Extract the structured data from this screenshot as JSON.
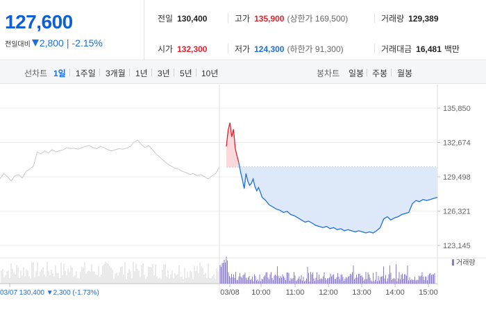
{
  "header": {
    "price": "127,600",
    "change_label": "전일대비",
    "change_value": "2,800",
    "change_percent": "-2.15%",
    "stats": {
      "prev_close_label": "전일",
      "prev_close": "130,400",
      "high_label": "고가",
      "high": "135,900",
      "upper_limit": "(상한가 169,500)",
      "volume_label": "거래량",
      "volume": "129,389",
      "open_label": "시가",
      "open": "132,300",
      "low_label": "저가",
      "low": "124,300",
      "lower_limit": "(하한가 91,300)",
      "amount_label": "거래대금",
      "amount": "16,481",
      "amount_unit": "백만"
    }
  },
  "periods": {
    "line_label": "선차트",
    "line_items": [
      "1일",
      "1주일",
      "3개월",
      "1년",
      "3년",
      "5년",
      "10년"
    ],
    "active": "1일",
    "candle_label": "봉차트",
    "candle_items": [
      "일봉",
      "주봉",
      "월봉"
    ]
  },
  "colors": {
    "up": "#e0202c",
    "down": "#1b6ee0",
    "volume": "#8a78c8",
    "fill": "#dde9f8"
  },
  "chart_data": {
    "type": "line",
    "y_ticks": [
      "135,850",
      "132,674",
      "129,498",
      "126,321",
      "123,145"
    ],
    "y_tick_values": [
      135850,
      132674,
      129498,
      126321,
      123145
    ],
    "ylim": [
      123145,
      135850
    ],
    "x_labels": [
      "03/07",
      "03/08",
      "10:00",
      "11:00",
      "12:00",
      "13:00",
      "14:00",
      "15:00"
    ],
    "prev_close": 130400,
    "prev_day_series": [
      [
        0,
        129300
      ],
      [
        2,
        129800
      ],
      [
        4,
        129500
      ],
      [
        6,
        129100
      ],
      [
        8,
        129600
      ],
      [
        10,
        129700
      ],
      [
        12,
        129400
      ],
      [
        14,
        130000
      ],
      [
        16,
        130200
      ],
      [
        18,
        130500
      ],
      [
        20,
        131800
      ],
      [
        22,
        131600
      ],
      [
        24,
        131900
      ],
      [
        26,
        131700
      ],
      [
        28,
        132000
      ],
      [
        30,
        131800
      ],
      [
        32,
        131900
      ],
      [
        34,
        132000
      ],
      [
        36,
        132200
      ],
      [
        38,
        132100
      ],
      [
        40,
        132150
      ],
      [
        42,
        132050
      ],
      [
        44,
        132200
      ],
      [
        46,
        132300
      ],
      [
        48,
        132400
      ],
      [
        50,
        132200
      ],
      [
        52,
        132100
      ],
      [
        54,
        132300
      ],
      [
        56,
        132200
      ],
      [
        58,
        132000
      ],
      [
        60,
        131900
      ],
      [
        62,
        132000
      ],
      [
        64,
        132100
      ],
      [
        66,
        132050
      ],
      [
        68,
        132150
      ],
      [
        70,
        132300
      ],
      [
        72,
        132700
      ],
      [
        74,
        132900
      ],
      [
        76,
        132500
      ],
      [
        78,
        132200
      ],
      [
        80,
        132400
      ],
      [
        82,
        132000
      ],
      [
        84,
        131600
      ],
      [
        86,
        131300
      ],
      [
        88,
        131000
      ],
      [
        90,
        130700
      ],
      [
        92,
        130500
      ],
      [
        94,
        130300
      ],
      [
        96,
        130200
      ],
      [
        98,
        130000
      ],
      [
        100,
        129900
      ],
      [
        102,
        129700
      ],
      [
        104,
        129800
      ],
      [
        106,
        129600
      ],
      [
        108,
        129700
      ],
      [
        110,
        129500
      ],
      [
        112,
        129300
      ],
      [
        114,
        129600
      ],
      [
        116,
        129800
      ],
      [
        118,
        130400
      ]
    ],
    "today_series": [
      [
        0,
        132300
      ],
      [
        1,
        133800
      ],
      [
        2,
        134500
      ],
      [
        3,
        133200
      ],
      [
        4,
        133900
      ],
      [
        5,
        132100
      ],
      [
        6,
        131400
      ],
      [
        7,
        130800
      ],
      [
        8,
        129900
      ],
      [
        9,
        129200
      ],
      [
        10,
        128400
      ],
      [
        11,
        129800
      ],
      [
        12,
        129100
      ],
      [
        13,
        128700
      ],
      [
        14,
        128900
      ],
      [
        15,
        129300
      ],
      [
        16,
        128600
      ],
      [
        17,
        128200
      ],
      [
        18,
        128500
      ],
      [
        19,
        128100
      ],
      [
        20,
        127600
      ],
      [
        22,
        127300
      ],
      [
        24,
        126900
      ],
      [
        26,
        126700
      ],
      [
        28,
        126500
      ],
      [
        30,
        126400
      ],
      [
        32,
        126200
      ],
      [
        34,
        126300
      ],
      [
        36,
        126000
      ],
      [
        38,
        125900
      ],
      [
        40,
        125700
      ],
      [
        42,
        125500
      ],
      [
        44,
        125300
      ],
      [
        46,
        125400
      ],
      [
        48,
        125200
      ],
      [
        50,
        125000
      ],
      [
        52,
        124900
      ],
      [
        54,
        124800
      ],
      [
        56,
        124900
      ],
      [
        58,
        124700
      ],
      [
        60,
        124800
      ],
      [
        62,
        124600
      ],
      [
        64,
        124700
      ],
      [
        66,
        124500
      ],
      [
        68,
        124600
      ],
      [
        70,
        124500
      ],
      [
        72,
        124400
      ],
      [
        74,
        124500
      ],
      [
        76,
        124400
      ],
      [
        78,
        124300
      ],
      [
        80,
        124400
      ],
      [
        82,
        124300
      ],
      [
        84,
        124500
      ],
      [
        86,
        124800
      ],
      [
        88,
        125600
      ],
      [
        90,
        125800
      ],
      [
        92,
        125500
      ],
      [
        94,
        125700
      ],
      [
        96,
        125800
      ],
      [
        98,
        126000
      ],
      [
        100,
        126100
      ],
      [
        102,
        126200
      ],
      [
        104,
        127000
      ],
      [
        106,
        127300
      ],
      [
        108,
        127200
      ],
      [
        110,
        127400
      ],
      [
        112,
        127300
      ],
      [
        114,
        127400
      ],
      [
        116,
        127500
      ],
      [
        118,
        127600
      ]
    ],
    "volume_label": "거래량",
    "prev_footer": "03/07  130,400 ▼2,300 (-1.73%)"
  }
}
